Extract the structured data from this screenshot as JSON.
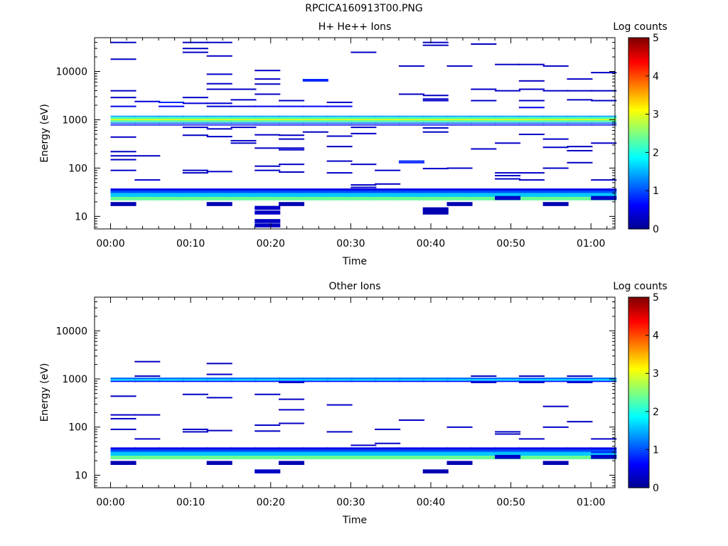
{
  "page_title": "RPCICA160913T00.PNG",
  "colors": {
    "colormap": [
      "#00008f",
      "#0000ff",
      "#007fff",
      "#00ffff",
      "#7fff7f",
      "#ffff00",
      "#ff7f00",
      "#ff0000",
      "#7f0000"
    ]
  },
  "chart_data": [
    {
      "type": "heatmap",
      "title": "H+ He++ Ions",
      "xlabel": "Time",
      "ylabel": "Energy (eV)",
      "yscale": "log",
      "xlim": [
        -2.0,
        63.0
      ],
      "ylim": [
        5.5,
        50000
      ],
      "xticks": [
        "00:00",
        "00:10",
        "00:20",
        "00:30",
        "00:40",
        "00:50",
        "01:00"
      ],
      "yticks": [
        "10",
        "100",
        "1000",
        "10000"
      ],
      "colorbar": {
        "label": "Log counts",
        "range": [
          0,
          5
        ],
        "ticks": [
          "0",
          "1",
          "2",
          "3",
          "4",
          "5"
        ]
      },
      "time_bins_start_min": [
        0,
        3,
        6,
        9,
        12,
        15,
        18,
        21,
        24,
        27,
        30,
        33,
        36,
        39,
        42,
        45,
        48,
        51,
        54,
        57,
        60
      ],
      "time_bin_width_min": 3.2,
      "rows": [
        {
          "energy_ev": 1000,
          "band_factor": 1.06,
          "value": 2.9,
          "all_bins": true
        },
        {
          "energy_ev": 930,
          "band_factor": 1.04,
          "value": 2.2,
          "all_bins": true
        },
        {
          "energy_ev": 1090,
          "band_factor": 1.04,
          "value": 2.2,
          "all_bins": true
        },
        {
          "energy_ev": 1180,
          "band_factor": 1.03,
          "value": 1.4,
          "all_bins": true
        },
        {
          "energy_ev": 850,
          "band_factor": 1.03,
          "value": 1.1,
          "all_bins": true
        },
        {
          "energy_ev": 780,
          "band_factor": 1.025,
          "value": 0.5,
          "all_bins": true
        },
        {
          "energy_ev": 24,
          "band_factor": 1.12,
          "value": 2.4,
          "all_bins": true
        },
        {
          "energy_ev": 28,
          "band_factor": 1.1,
          "value": 1.6,
          "all_bins": true
        },
        {
          "energy_ev": 33,
          "band_factor": 1.08,
          "value": 1.0,
          "all_bins": true
        },
        {
          "energy_ev": 36,
          "band_factor": 1.05,
          "value": 0.5,
          "all_bins": true
        }
      ],
      "cells": [
        {
          "t": 0,
          "e": 18,
          "v": 0.2
        },
        {
          "t": 3,
          "e": 57,
          "v": 0.4
        },
        {
          "t": 12,
          "e": 18,
          "v": 0.2
        },
        {
          "t": 21,
          "e": 18,
          "v": 0.2
        },
        {
          "t": 18,
          "e": 15,
          "v": 0.3
        },
        {
          "t": 18,
          "e": 12,
          "v": 0.3
        },
        {
          "t": 18,
          "e": 8,
          "v": 0.3
        },
        {
          "t": 18,
          "e": 6.5,
          "v": 0.3
        },
        {
          "t": 39,
          "e": 12,
          "v": 0.2
        },
        {
          "t": 39,
          "e": 14,
          "v": 0.2
        },
        {
          "t": 42,
          "e": 18,
          "v": 0.2
        },
        {
          "t": 48,
          "e": 24,
          "v": 0.3
        },
        {
          "t": 54,
          "e": 18,
          "v": 0.2
        },
        {
          "t": 60,
          "e": 24,
          "v": 0.3
        },
        {
          "t": 6,
          "e": 2300,
          "v": 0.8
        },
        {
          "t": 3,
          "e": 2400,
          "v": 0.4
        },
        {
          "t": 0,
          "e": 1900,
          "v": 0.5
        },
        {
          "t": 6,
          "e": 1900,
          "v": 0.6
        },
        {
          "t": 12,
          "e": 1900,
          "v": 0.4
        },
        {
          "t": 15,
          "e": 1900,
          "v": 0.4
        },
        {
          "t": 18,
          "e": 1900,
          "v": 0.5
        },
        {
          "t": 21,
          "e": 1900,
          "v": 0.6
        },
        {
          "t": 24,
          "e": 1900,
          "v": 0.6
        },
        {
          "t": 27,
          "e": 1900,
          "v": 0.6
        },
        {
          "t": 51,
          "e": 1800,
          "v": 0.5
        },
        {
          "t": 9,
          "e": 2200,
          "v": 0.4
        },
        {
          "t": 12,
          "e": 2200,
          "v": 0.4
        },
        {
          "t": 0,
          "e": 40000,
          "v": 0.3
        },
        {
          "t": 9,
          "e": 40000,
          "v": 0.3
        },
        {
          "t": 12,
          "e": 40000,
          "v": 0.3
        },
        {
          "t": 39,
          "e": 40000,
          "v": 0.3
        },
        {
          "t": 45,
          "e": 37000,
          "v": 0.3
        },
        {
          "t": 9,
          "e": 30000,
          "v": 0.3
        },
        {
          "t": 39,
          "e": 35000,
          "v": 0.3
        },
        {
          "t": 9,
          "e": 25000,
          "v": 0.3
        },
        {
          "t": 30,
          "e": 25000,
          "v": 0.3
        },
        {
          "t": 12,
          "e": 21000,
          "v": 0.3
        },
        {
          "t": 0,
          "e": 18000,
          "v": 0.3
        },
        {
          "t": 36,
          "e": 13000,
          "v": 0.3
        },
        {
          "t": 42,
          "e": 13000,
          "v": 0.3
        },
        {
          "t": 48,
          "e": 14000,
          "v": 0.3
        },
        {
          "t": 51,
          "e": 14000,
          "v": 0.3
        },
        {
          "t": 54,
          "e": 13000,
          "v": 0.3
        },
        {
          "t": 18,
          "e": 10500,
          "v": 0.3
        },
        {
          "t": 57,
          "e": 7000,
          "v": 0.3
        },
        {
          "t": 60,
          "e": 9500,
          "v": 0.3
        },
        {
          "t": 12,
          "e": 8800,
          "v": 0.3
        },
        {
          "t": 18,
          "e": 7000,
          "v": 0.3
        },
        {
          "t": 24,
          "e": 6800,
          "v": 0.8
        },
        {
          "t": 24,
          "e": 6400,
          "v": 0.8
        },
        {
          "t": 51,
          "e": 6400,
          "v": 0.3
        },
        {
          "t": 12,
          "e": 5600,
          "v": 0.3
        },
        {
          "t": 18,
          "e": 5500,
          "v": 0.3
        },
        {
          "t": 45,
          "e": 4300,
          "v": 0.3
        },
        {
          "t": 0,
          "e": 4000,
          "v": 0.3
        },
        {
          "t": 12,
          "e": 4300,
          "v": 0.3
        },
        {
          "t": 15,
          "e": 4300,
          "v": 0.3
        },
        {
          "t": 48,
          "e": 4000,
          "v": 0.3
        },
        {
          "t": 51,
          "e": 4300,
          "v": 0.3
        },
        {
          "t": 54,
          "e": 4000,
          "v": 0.3
        },
        {
          "t": 57,
          "e": 4000,
          "v": 0.3
        },
        {
          "t": 60,
          "e": 4000,
          "v": 0.3
        },
        {
          "t": 36,
          "e": 3400,
          "v": 0.3
        },
        {
          "t": 18,
          "e": 3400,
          "v": 0.3
        },
        {
          "t": 39,
          "e": 3200,
          "v": 0.3
        },
        {
          "t": 0,
          "e": 2900,
          "v": 0.3
        },
        {
          "t": 9,
          "e": 2900,
          "v": 0.3
        },
        {
          "t": 39,
          "e": 2700,
          "v": 0.3
        },
        {
          "t": 15,
          "e": 2600,
          "v": 0.3
        },
        {
          "t": 21,
          "e": 2500,
          "v": 0.3
        },
        {
          "t": 27,
          "e": 2300,
          "v": 0.3
        },
        {
          "t": 39,
          "e": 2500,
          "v": 0.3
        },
        {
          "t": 45,
          "e": 2500,
          "v": 0.3
        },
        {
          "t": 51,
          "e": 2500,
          "v": 0.3
        },
        {
          "t": 57,
          "e": 2600,
          "v": 0.3
        },
        {
          "t": 60,
          "e": 2500,
          "v": 0.3
        },
        {
          "t": 9,
          "e": 700,
          "v": 0.3
        },
        {
          "t": 12,
          "e": 650,
          "v": 0.3
        },
        {
          "t": 15,
          "e": 700,
          "v": 0.3
        },
        {
          "t": 24,
          "e": 560,
          "v": 0.3
        },
        {
          "t": 30,
          "e": 700,
          "v": 0.3
        },
        {
          "t": 39,
          "e": 560,
          "v": 0.3
        },
        {
          "t": 39,
          "e": 680,
          "v": 0.3
        },
        {
          "t": 9,
          "e": 480,
          "v": 0.3
        },
        {
          "t": 12,
          "e": 450,
          "v": 0.3
        },
        {
          "t": 18,
          "e": 490,
          "v": 0.3
        },
        {
          "t": 21,
          "e": 480,
          "v": 0.3
        },
        {
          "t": 30,
          "e": 520,
          "v": 0.3
        },
        {
          "t": 51,
          "e": 500,
          "v": 0.3
        },
        {
          "t": 0,
          "e": 440,
          "v": 0.3
        },
        {
          "t": 15,
          "e": 370,
          "v": 0.3
        },
        {
          "t": 15,
          "e": 330,
          "v": 0.3
        },
        {
          "t": 21,
          "e": 400,
          "v": 0.3
        },
        {
          "t": 27,
          "e": 460,
          "v": 0.3
        },
        {
          "t": 48,
          "e": 330,
          "v": 0.3
        },
        {
          "t": 54,
          "e": 400,
          "v": 0.3
        },
        {
          "t": 60,
          "e": 330,
          "v": 0.3
        },
        {
          "t": 18,
          "e": 260,
          "v": 0.3
        },
        {
          "t": 21,
          "e": 260,
          "v": 0.3
        },
        {
          "t": 21,
          "e": 240,
          "v": 0.4
        },
        {
          "t": 27,
          "e": 280,
          "v": 0.3
        },
        {
          "t": 45,
          "e": 250,
          "v": 0.3
        },
        {
          "t": 54,
          "e": 270,
          "v": 0.3
        },
        {
          "t": 57,
          "e": 280,
          "v": 0.3
        },
        {
          "t": 57,
          "e": 230,
          "v": 0.3
        },
        {
          "t": 0,
          "e": 220,
          "v": 0.3
        },
        {
          "t": 0,
          "e": 180,
          "v": 0.3
        },
        {
          "t": 3,
          "e": 180,
          "v": 0.3
        },
        {
          "t": 0,
          "e": 150,
          "v": 0.3
        },
        {
          "t": 27,
          "e": 140,
          "v": 0.3
        },
        {
          "t": 36,
          "e": 140,
          "v": 0.8
        },
        {
          "t": 36,
          "e": 130,
          "v": 0.8
        },
        {
          "t": 30,
          "e": 120,
          "v": 0.3
        },
        {
          "t": 21,
          "e": 120,
          "v": 0.3
        },
        {
          "t": 18,
          "e": 110,
          "v": 0.3
        },
        {
          "t": 54,
          "e": 100,
          "v": 0.3
        },
        {
          "t": 57,
          "e": 130,
          "v": 0.3
        },
        {
          "t": 42,
          "e": 100,
          "v": 0.3
        },
        {
          "t": 0,
          "e": 90,
          "v": 0.3
        },
        {
          "t": 9,
          "e": 90,
          "v": 0.3
        },
        {
          "t": 9,
          "e": 80,
          "v": 0.3
        },
        {
          "t": 12,
          "e": 85,
          "v": 0.3
        },
        {
          "t": 18,
          "e": 90,
          "v": 0.3
        },
        {
          "t": 21,
          "e": 83,
          "v": 0.3
        },
        {
          "t": 27,
          "e": 80,
          "v": 0.3
        },
        {
          "t": 33,
          "e": 90,
          "v": 0.3
        },
        {
          "t": 39,
          "e": 98,
          "v": 0.3
        },
        {
          "t": 48,
          "e": 80,
          "v": 0.3
        },
        {
          "t": 48,
          "e": 70,
          "v": 0.3
        },
        {
          "t": 51,
          "e": 80,
          "v": 0.3
        },
        {
          "t": 51,
          "e": 57,
          "v": 0.3
        },
        {
          "t": 48,
          "e": 60,
          "v": 0.3
        },
        {
          "t": 60,
          "e": 57,
          "v": 0.3
        },
        {
          "t": 30,
          "e": 45,
          "v": 0.3
        },
        {
          "t": 33,
          "e": 47,
          "v": 0.3
        },
        {
          "t": 30,
          "e": 40,
          "v": 0.3
        }
      ]
    },
    {
      "type": "heatmap",
      "title": "Other Ions",
      "xlabel": "Time",
      "ylabel": "Energy (eV)",
      "yscale": "log",
      "xlim": [
        -2.0,
        63.0
      ],
      "ylim": [
        5.5,
        50000
      ],
      "xticks": [
        "00:00",
        "00:10",
        "00:20",
        "00:30",
        "00:40",
        "00:50",
        "01:00"
      ],
      "yticks": [
        "10",
        "100",
        "1000",
        "10000"
      ],
      "colorbar": {
        "label": "Log counts",
        "range": [
          0,
          5
        ],
        "ticks": [
          "0",
          "1",
          "2",
          "3",
          "4",
          "5"
        ]
      },
      "time_bins_start_min": [
        0,
        3,
        6,
        9,
        12,
        15,
        18,
        21,
        24,
        27,
        30,
        33,
        36,
        39,
        42,
        45,
        48,
        51,
        54,
        57,
        60
      ],
      "time_bin_width_min": 3.2,
      "rows": [
        {
          "energy_ev": 960,
          "band_factor": 1.04,
          "value": 1.7,
          "all_bins": true
        },
        {
          "energy_ev": 1030,
          "band_factor": 1.035,
          "value": 1.1,
          "all_bins": true
        },
        {
          "energy_ev": 890,
          "band_factor": 1.03,
          "value": 0.7,
          "all_bins": true
        },
        {
          "energy_ev": 24,
          "band_factor": 1.12,
          "value": 2.4,
          "all_bins": true
        },
        {
          "energy_ev": 28,
          "band_factor": 1.1,
          "value": 1.6,
          "all_bins": true
        },
        {
          "energy_ev": 33,
          "band_factor": 1.08,
          "value": 1.0,
          "all_bins": true
        },
        {
          "energy_ev": 36,
          "band_factor": 1.05,
          "value": 0.5,
          "all_bins": true
        }
      ],
      "cells": [
        {
          "t": 0,
          "e": 18,
          "v": 0.2
        },
        {
          "t": 3,
          "e": 57,
          "v": 0.3
        },
        {
          "t": 12,
          "e": 18,
          "v": 0.2
        },
        {
          "t": 21,
          "e": 18,
          "v": 0.2
        },
        {
          "t": 18,
          "e": 12,
          "v": 0.3
        },
        {
          "t": 39,
          "e": 12,
          "v": 0.2
        },
        {
          "t": 42,
          "e": 18,
          "v": 0.2
        },
        {
          "t": 48,
          "e": 24,
          "v": 0.3
        },
        {
          "t": 54,
          "e": 18,
          "v": 0.2
        },
        {
          "t": 60,
          "e": 24,
          "v": 0.3
        },
        {
          "t": 60,
          "e": 30,
          "v": 0.8
        },
        {
          "t": 3,
          "e": 2300,
          "v": 0.3
        },
        {
          "t": 12,
          "e": 2100,
          "v": 0.3
        },
        {
          "t": 12,
          "e": 1250,
          "v": 0.3
        },
        {
          "t": 3,
          "e": 1150,
          "v": 0.3
        },
        {
          "t": 45,
          "e": 1150,
          "v": 0.3
        },
        {
          "t": 51,
          "e": 1150,
          "v": 0.3
        },
        {
          "t": 57,
          "e": 1150,
          "v": 0.3
        },
        {
          "t": 21,
          "e": 850,
          "v": 0.3
        },
        {
          "t": 45,
          "e": 850,
          "v": 0.3
        },
        {
          "t": 51,
          "e": 850,
          "v": 0.3
        },
        {
          "t": 57,
          "e": 850,
          "v": 0.3
        },
        {
          "t": 9,
          "e": 480,
          "v": 0.3
        },
        {
          "t": 18,
          "e": 480,
          "v": 0.3
        },
        {
          "t": 0,
          "e": 440,
          "v": 0.3
        },
        {
          "t": 12,
          "e": 410,
          "v": 0.3
        },
        {
          "t": 21,
          "e": 380,
          "v": 0.3
        },
        {
          "t": 27,
          "e": 290,
          "v": 0.3
        },
        {
          "t": 54,
          "e": 270,
          "v": 0.3
        },
        {
          "t": 21,
          "e": 230,
          "v": 0.3
        },
        {
          "t": 0,
          "e": 180,
          "v": 0.3
        },
        {
          "t": 3,
          "e": 180,
          "v": 0.3
        },
        {
          "t": 0,
          "e": 150,
          "v": 0.3
        },
        {
          "t": 36,
          "e": 140,
          "v": 0.3
        },
        {
          "t": 57,
          "e": 130,
          "v": 0.3
        },
        {
          "t": 21,
          "e": 120,
          "v": 0.3
        },
        {
          "t": 18,
          "e": 110,
          "v": 0.3
        },
        {
          "t": 42,
          "e": 100,
          "v": 0.3
        },
        {
          "t": 54,
          "e": 100,
          "v": 0.3
        },
        {
          "t": 0,
          "e": 90,
          "v": 0.3
        },
        {
          "t": 9,
          "e": 90,
          "v": 0.3
        },
        {
          "t": 9,
          "e": 80,
          "v": 0.3
        },
        {
          "t": 12,
          "e": 85,
          "v": 0.3
        },
        {
          "t": 18,
          "e": 83,
          "v": 0.3
        },
        {
          "t": 27,
          "e": 80,
          "v": 0.3
        },
        {
          "t": 33,
          "e": 90,
          "v": 0.3
        },
        {
          "t": 48,
          "e": 80,
          "v": 0.3
        },
        {
          "t": 48,
          "e": 72,
          "v": 0.3
        },
        {
          "t": 51,
          "e": 57,
          "v": 0.3
        },
        {
          "t": 60,
          "e": 57,
          "v": 0.3
        },
        {
          "t": 30,
          "e": 42,
          "v": 0.3
        },
        {
          "t": 33,
          "e": 46,
          "v": 0.3
        }
      ]
    }
  ]
}
